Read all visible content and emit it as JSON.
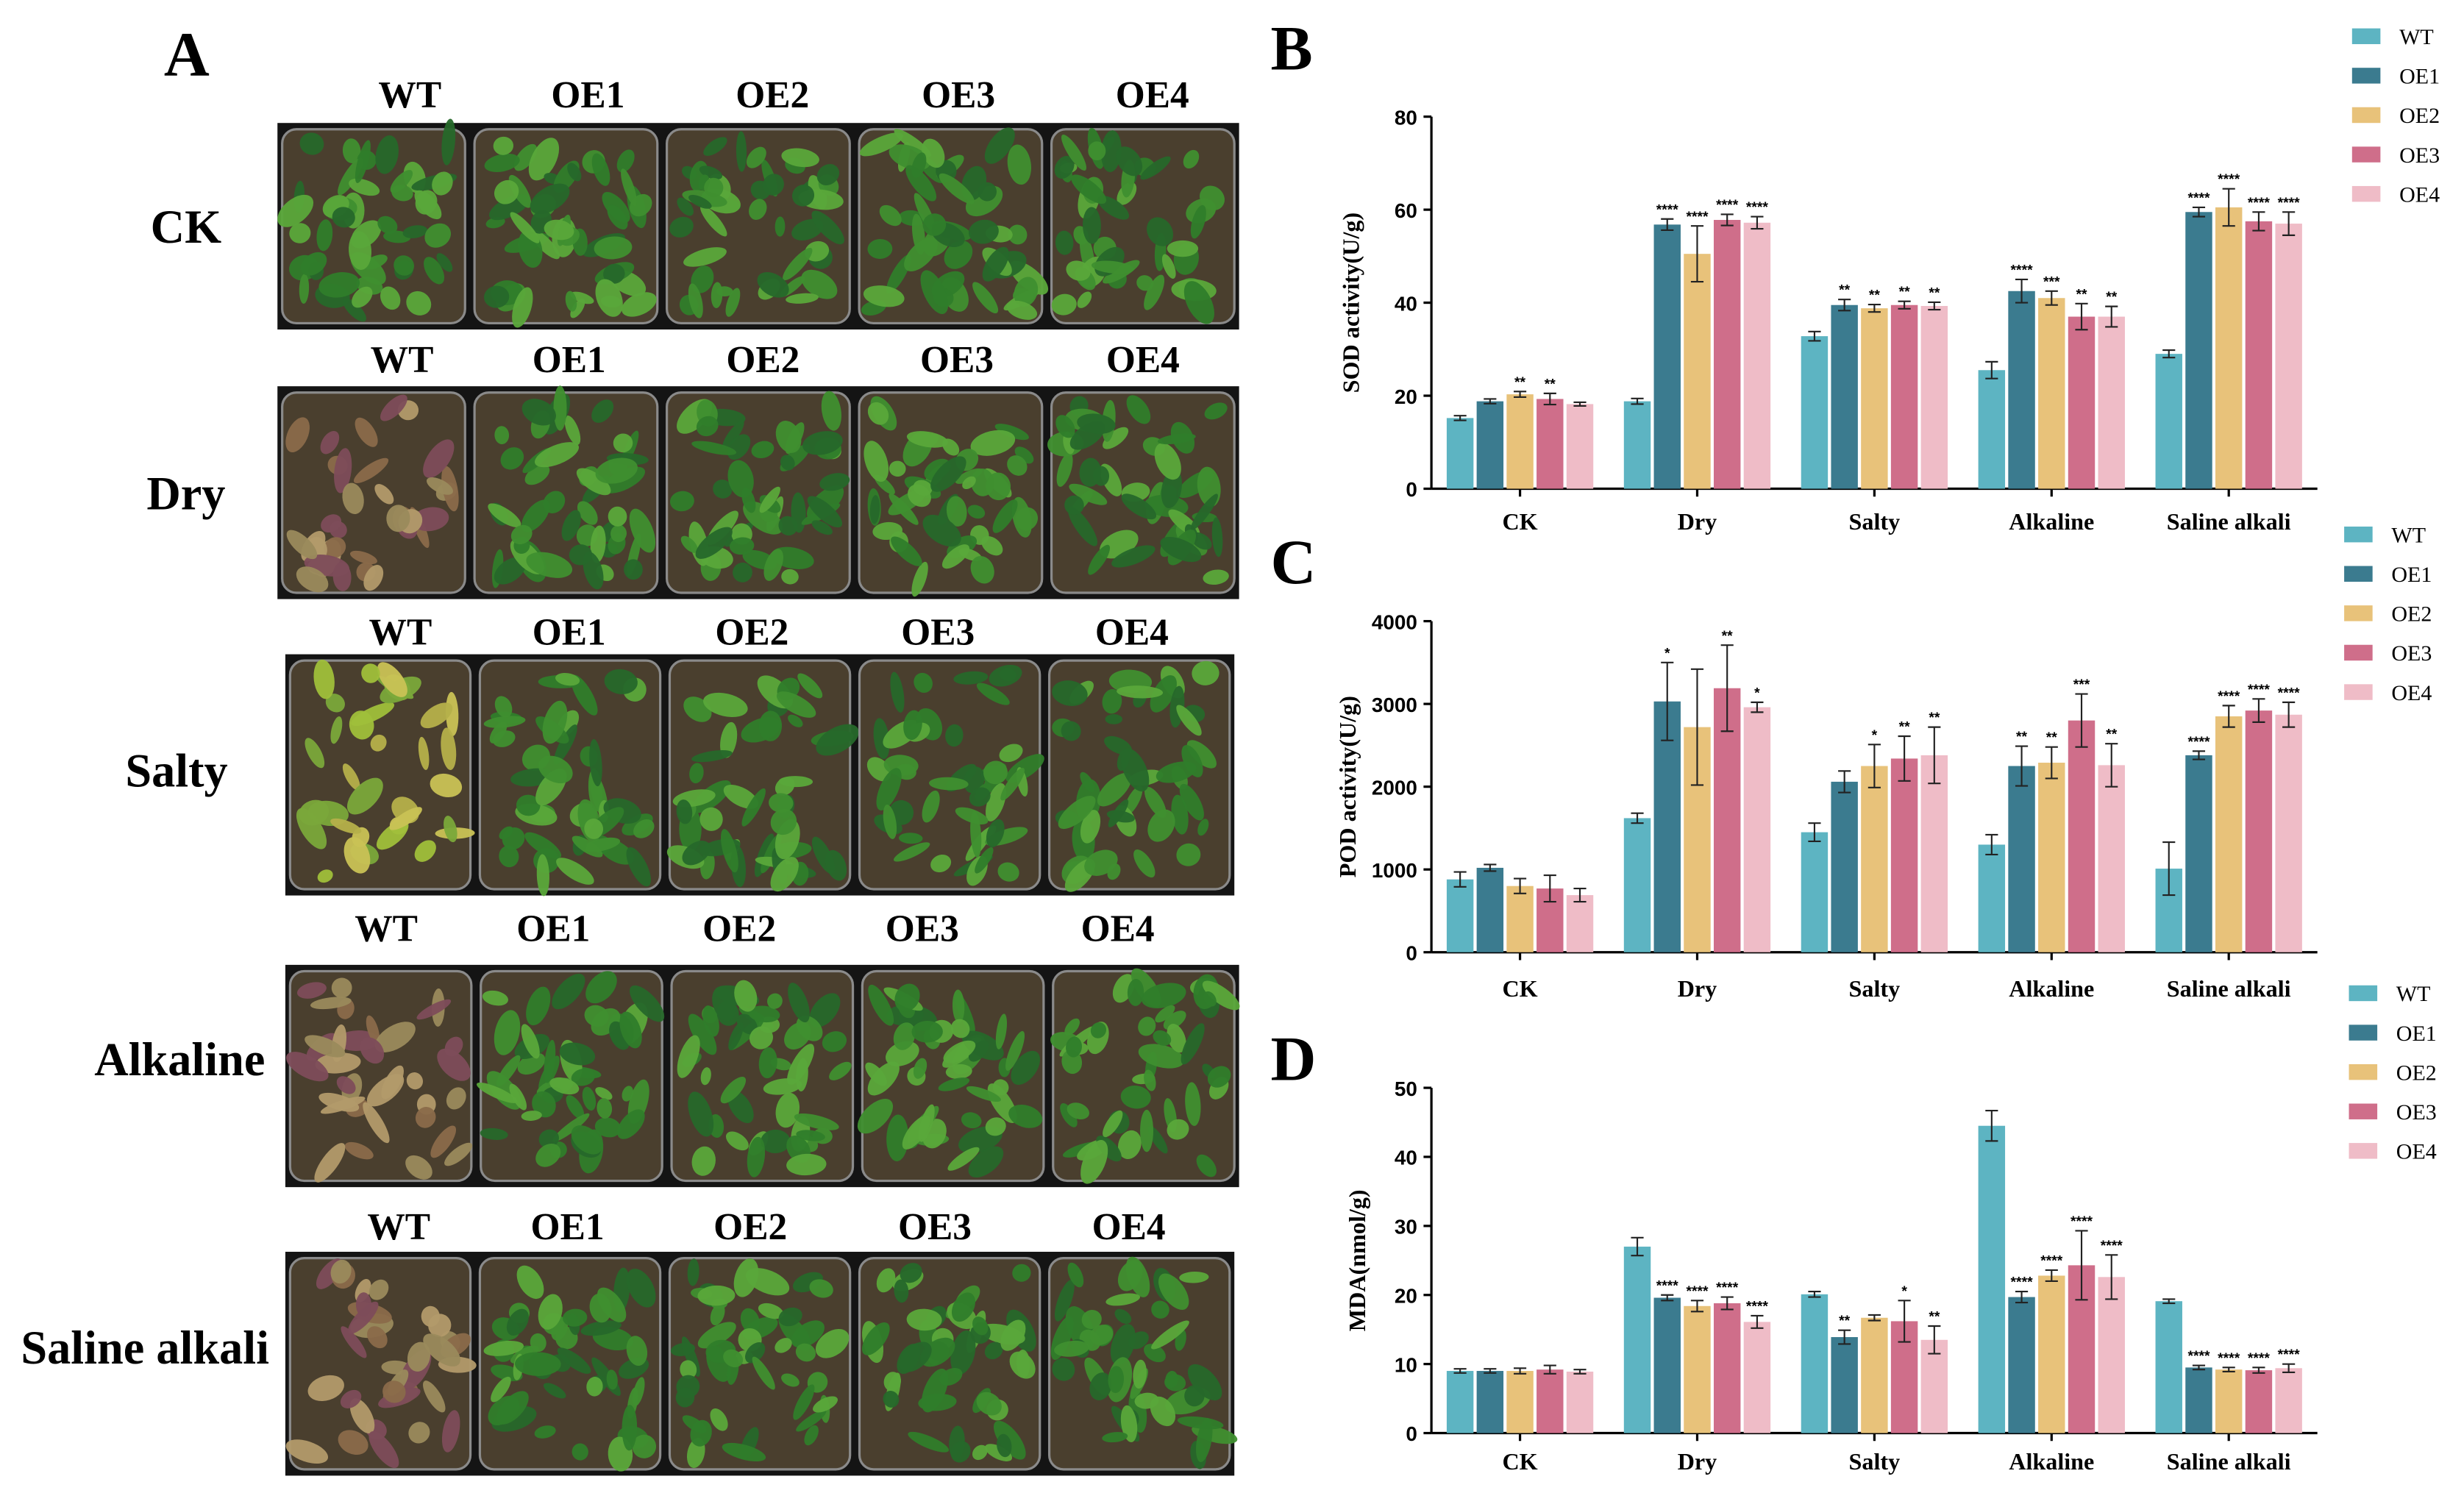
{
  "panel_letters": {
    "a": "A",
    "b": "B",
    "c": "C",
    "d": "D"
  },
  "colors": {
    "WT": "#5db4c2",
    "OE1": "#3b7b8f",
    "OE2": "#e8c27a",
    "OE3": "#cf6e8a",
    "OE4": "#efbcc7",
    "tray": "#141414",
    "soil": "#4a3f2e",
    "leaf_healthy": "#2f7d2a",
    "leaf_bright": "#5aa83a",
    "leaf_dead": "#9a8a5c",
    "leaf_purple": "#7d4c5a"
  },
  "photo_panel": {
    "rows": [
      {
        "condition": "CK",
        "lines": [
          "WT",
          "OE1",
          "OE2",
          "OE3",
          "OE4"
        ],
        "wt_state": "healthy"
      },
      {
        "condition": "Dry",
        "lines": [
          "WT",
          "OE1",
          "OE2",
          "OE3",
          "OE4"
        ],
        "wt_state": "withered"
      },
      {
        "condition": "Salty",
        "lines": [
          "WT",
          "OE1",
          "OE2",
          "OE3",
          "OE4"
        ],
        "wt_state": "yellow"
      },
      {
        "condition": "Alkaline",
        "lines": [
          "WT",
          "OE1",
          "OE2",
          "OE3",
          "OE4"
        ],
        "wt_state": "withered"
      },
      {
        "condition": "Saline alkali",
        "lines": [
          "WT",
          "OE1",
          "OE2",
          "OE3",
          "OE4"
        ],
        "wt_state": "withered"
      }
    ]
  },
  "chart_data": [
    {
      "id": "B",
      "type": "bar",
      "title": "",
      "xlabel": "",
      "ylabel": "SOD activity(U/g)",
      "ylim": [
        0,
        80
      ],
      "yticks": [
        0,
        20,
        40,
        60,
        80
      ],
      "categories": [
        "CK",
        "Dry",
        "Salty",
        "Alkaline",
        "Saline alkali"
      ],
      "legend": [
        "WT",
        "OE1",
        "OE2",
        "OE3",
        "OE4"
      ],
      "series": [
        {
          "name": "WT",
          "values": [
            15.2,
            18.8,
            32.8,
            25.5,
            29.0
          ],
          "errors": [
            0.5,
            0.6,
            1.0,
            1.8,
            0.8
          ],
          "sig": [
            "",
            "",
            "",
            "",
            ""
          ]
        },
        {
          "name": "OE1",
          "values": [
            18.8,
            56.8,
            39.5,
            42.5,
            59.5
          ],
          "errors": [
            0.5,
            1.2,
            1.2,
            2.5,
            1.0
          ],
          "sig": [
            "",
            "****",
            "**",
            "****",
            "****"
          ]
        },
        {
          "name": "OE2",
          "values": [
            20.3,
            50.5,
            38.8,
            41.0,
            60.5
          ],
          "errors": [
            0.6,
            6.0,
            0.8,
            1.5,
            4.0
          ],
          "sig": [
            "**",
            "****",
            "**",
            "***",
            "****"
          ]
        },
        {
          "name": "OE3",
          "values": [
            19.3,
            57.8,
            39.5,
            37.0,
            57.5
          ],
          "errors": [
            1.2,
            1.2,
            0.8,
            2.8,
            2.0
          ],
          "sig": [
            "**",
            "****",
            "**",
            "**",
            "****"
          ]
        },
        {
          "name": "OE4",
          "values": [
            18.2,
            57.2,
            39.3,
            37.0,
            57.0
          ],
          "errors": [
            0.4,
            1.3,
            0.8,
            2.2,
            2.5
          ],
          "sig": [
            "",
            "****",
            "**",
            "**",
            "****"
          ]
        }
      ]
    },
    {
      "id": "C",
      "type": "bar",
      "title": "",
      "xlabel": "",
      "ylabel": "POD activity(U/g)",
      "ylim": [
        0,
        4000
      ],
      "yticks": [
        0,
        1000,
        2000,
        3000,
        4000
      ],
      "categories": [
        "CK",
        "Dry",
        "Salty",
        "Alkaline",
        "Saline alkali"
      ],
      "legend": [
        "WT",
        "OE1",
        "OE2",
        "OE3",
        "OE4"
      ],
      "series": [
        {
          "name": "WT",
          "values": [
            880,
            1620,
            1450,
            1300,
            1010
          ],
          "errors": [
            90,
            60,
            110,
            120,
            320
          ],
          "sig": [
            "",
            "",
            "",
            "",
            ""
          ]
        },
        {
          "name": "OE1",
          "values": [
            1020,
            3030,
            2060,
            2250,
            2380
          ],
          "errors": [
            40,
            470,
            130,
            240,
            50
          ],
          "sig": [
            "",
            "*",
            "",
            "**",
            "****"
          ]
        },
        {
          "name": "OE2",
          "values": [
            800,
            2720,
            2250,
            2290,
            2850
          ],
          "errors": [
            90,
            700,
            260,
            190,
            130
          ],
          "sig": [
            "",
            "",
            "*",
            "**",
            "****"
          ]
        },
        {
          "name": "OE3",
          "values": [
            770,
            3190,
            2340,
            2800,
            2920
          ],
          "errors": [
            160,
            520,
            270,
            320,
            140
          ],
          "sig": [
            "",
            "**",
            "**",
            "***",
            "****"
          ]
        },
        {
          "name": "OE4",
          "values": [
            690,
            2960,
            2380,
            2260,
            2870
          ],
          "errors": [
            80,
            60,
            340,
            260,
            150
          ],
          "sig": [
            "",
            "*",
            "**",
            "**",
            "****"
          ]
        }
      ]
    },
    {
      "id": "D",
      "type": "bar",
      "title": "",
      "xlabel": "",
      "ylabel": "MDA(nmol/g)",
      "ylim": [
        0,
        50
      ],
      "yticks": [
        0,
        10,
        20,
        30,
        40,
        50
      ],
      "categories": [
        "CK",
        "Dry",
        "Salty",
        "Alkaline",
        "Saline alkali"
      ],
      "legend": [
        "WT",
        "OE1",
        "OE2",
        "OE3",
        "OE4"
      ],
      "series": [
        {
          "name": "WT",
          "values": [
            9.0,
            27.0,
            20.1,
            44.5,
            19.1
          ],
          "errors": [
            0.3,
            1.3,
            0.4,
            2.2,
            0.3
          ],
          "sig": [
            "",
            "",
            "",
            "",
            ""
          ]
        },
        {
          "name": "OE1",
          "values": [
            9.0,
            19.6,
            13.9,
            19.7,
            9.5
          ],
          "errors": [
            0.3,
            0.4,
            1.0,
            0.8,
            0.3
          ],
          "sig": [
            "",
            "****",
            "**",
            "****",
            "****"
          ]
        },
        {
          "name": "OE2",
          "values": [
            9.0,
            18.4,
            16.7,
            22.8,
            9.2
          ],
          "errors": [
            0.4,
            0.8,
            0.4,
            0.8,
            0.3
          ],
          "sig": [
            "",
            "****",
            "",
            "****",
            "****"
          ]
        },
        {
          "name": "OE3",
          "values": [
            9.2,
            18.8,
            16.2,
            24.3,
            9.1
          ],
          "errors": [
            0.6,
            0.9,
            3.0,
            5.0,
            0.4
          ],
          "sig": [
            "",
            "****",
            "*",
            "****",
            "****"
          ]
        },
        {
          "name": "OE4",
          "values": [
            8.9,
            16.1,
            13.5,
            22.6,
            9.4
          ],
          "errors": [
            0.3,
            0.9,
            2.0,
            3.2,
            0.6
          ],
          "sig": [
            "",
            "****",
            "**",
            "****",
            "****"
          ]
        }
      ]
    }
  ]
}
